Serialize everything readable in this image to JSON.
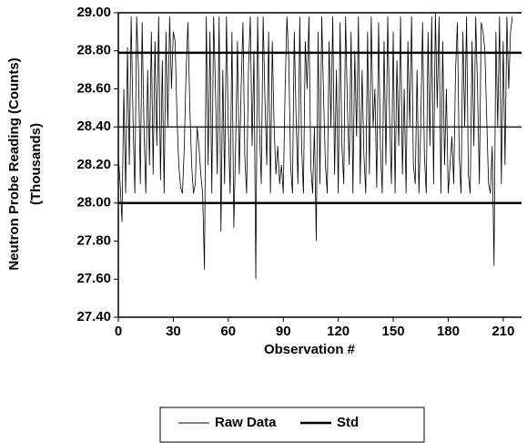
{
  "chart_data": {
    "type": "line",
    "xlabel": "Observation #",
    "ylabel": [
      "Neutron Probe Reading (Counts)",
      "(Thousands)"
    ],
    "xlim": [
      0,
      220
    ],
    "xticks": [
      0,
      30,
      60,
      90,
      120,
      150,
      180,
      210
    ],
    "ylim": [
      27.4,
      29.0
    ],
    "yticks": [
      {
        "value": 27.4,
        "label": "27.40"
      },
      {
        "value": 27.6,
        "label": "27.60"
      },
      {
        "value": 27.8,
        "label": "27.80"
      },
      {
        "value": 28.0,
        "label": "28.00"
      },
      {
        "value": 28.2,
        "label": "28.20"
      },
      {
        "value": 28.4,
        "label": "28.40"
      },
      {
        "value": 28.6,
        "label": "28.60"
      },
      {
        "value": 28.8,
        "label": "28.80"
      },
      {
        "value": 29.0,
        "label": "29.00"
      }
    ],
    "reference_lines": [
      28.4
    ],
    "series": [
      {
        "name": "Raw Data",
        "color": "#000000",
        "x": [
          0,
          1,
          2,
          3,
          4,
          5,
          6,
          7,
          8,
          9,
          10,
          11,
          12,
          13,
          14,
          15,
          16,
          17,
          18,
          19,
          20,
          21,
          22,
          23,
          24,
          25,
          26,
          27,
          28,
          29,
          30,
          31,
          32,
          33,
          34,
          35,
          36,
          37,
          38,
          39,
          40,
          41,
          42,
          43,
          44,
          45,
          46,
          47,
          48,
          49,
          50,
          51,
          52,
          53,
          54,
          55,
          56,
          57,
          58,
          59,
          60,
          61,
          62,
          63,
          64,
          65,
          66,
          67,
          68,
          69,
          70,
          71,
          72,
          73,
          74,
          75,
          76,
          77,
          78,
          79,
          80,
          81,
          82,
          83,
          84,
          85,
          86,
          87,
          88,
          89,
          90,
          91,
          92,
          93,
          94,
          95,
          96,
          97,
          98,
          99,
          100,
          101,
          102,
          103,
          104,
          105,
          106,
          107,
          108,
          109,
          110,
          111,
          112,
          113,
          114,
          115,
          116,
          117,
          118,
          119,
          120,
          121,
          122,
          123,
          124,
          125,
          126,
          127,
          128,
          129,
          130,
          131,
          132,
          133,
          134,
          135,
          136,
          137,
          138,
          139,
          140,
          141,
          142,
          143,
          144,
          145,
          146,
          147,
          148,
          149,
          150,
          151,
          152,
          153,
          154,
          155,
          156,
          157,
          158,
          159,
          160,
          161,
          162,
          163,
          164,
          165,
          166,
          167,
          168,
          169,
          170,
          171,
          172,
          173,
          174,
          175,
          176,
          177,
          178,
          179,
          180,
          181,
          182,
          183,
          184,
          185,
          186,
          187,
          188,
          189,
          190,
          191,
          192,
          193,
          194,
          195,
          196,
          197,
          198,
          199,
          200,
          201,
          202,
          203,
          204,
          205,
          206,
          207,
          208,
          209,
          210,
          211,
          212,
          213,
          214,
          215
        ],
        "values": [
          28.25,
          28.1,
          27.9,
          28.6,
          28.05,
          28.82,
          28.2,
          28.98,
          28.45,
          28.05,
          28.98,
          28.7,
          28.1,
          28.95,
          28.4,
          28.05,
          28.7,
          28.2,
          28.9,
          28.15,
          28.85,
          28.3,
          28.98,
          28.12,
          28.75,
          28.05,
          28.9,
          28.4,
          28.98,
          28.6,
          28.9,
          28.85,
          28.45,
          28.2,
          28.08,
          28.05,
          28.3,
          28.7,
          28.95,
          28.5,
          28.2,
          28.05,
          28.1,
          28.4,
          28.3,
          28.15,
          28.05,
          27.65,
          28.98,
          28.2,
          28.9,
          28.05,
          28.98,
          28.6,
          28.15,
          28.98,
          27.85,
          28.7,
          28.1,
          28.98,
          28.4,
          28.05,
          28.9,
          27.87,
          28.3,
          28.85,
          28.15,
          28.6,
          28.95,
          28.25,
          28.05,
          28.7,
          28.98,
          28.3,
          28.8,
          27.6,
          28.98,
          28.4,
          28.1,
          28.98,
          28.55,
          28.2,
          28.9,
          28.05,
          28.85,
          28.4,
          28.15,
          28.3,
          28.1,
          28.2,
          28.05,
          28.6,
          28.98,
          28.75,
          28.2,
          28.05,
          28.9,
          28.45,
          28.1,
          28.98,
          28.3,
          28.05,
          28.85,
          28.6,
          28.98,
          28.2,
          28.05,
          28.4,
          27.8,
          28.9,
          28.1,
          28.98,
          28.55,
          28.2,
          28.05,
          28.85,
          28.4,
          28.98,
          28.15,
          28.7,
          28.05,
          28.95,
          28.3,
          28.1,
          28.98,
          28.5,
          28.2,
          28.9,
          28.05,
          28.8,
          28.35,
          28.98,
          28.1,
          28.7,
          28.25,
          28.05,
          28.9,
          28.15,
          28.98,
          28.4,
          28.6,
          28.08,
          28.95,
          28.3,
          28.05,
          28.85,
          28.2,
          28.98,
          28.45,
          28.1,
          28.9,
          28.05,
          28.75,
          28.3,
          28.98,
          28.15,
          28.6,
          28.05,
          28.85,
          28.4,
          28.98,
          28.2,
          28.1,
          28.7,
          28.05,
          28.4,
          28.95,
          28.25,
          28.05,
          28.9,
          28.3,
          28.98,
          28.1,
          29.0,
          28.5,
          28.98,
          28.05,
          28.85,
          28.2,
          28.6,
          28.05,
          28.2,
          28.35,
          28.1,
          28.7,
          28.95,
          28.25,
          28.05,
          28.9,
          28.4,
          28.98,
          28.15,
          28.05,
          28.85,
          28.3,
          28.98,
          28.6,
          28.1,
          28.95,
          28.9,
          28.8,
          28.45,
          28.1,
          28.05,
          28.3,
          27.67,
          28.9,
          28.4,
          28.98,
          28.1,
          28.85,
          28.2,
          28.98,
          28.6,
          28.9,
          28.98
        ]
      },
      {
        "name": "Std",
        "color": "#000000",
        "values": [
          28.0,
          28.79
        ]
      }
    ]
  }
}
